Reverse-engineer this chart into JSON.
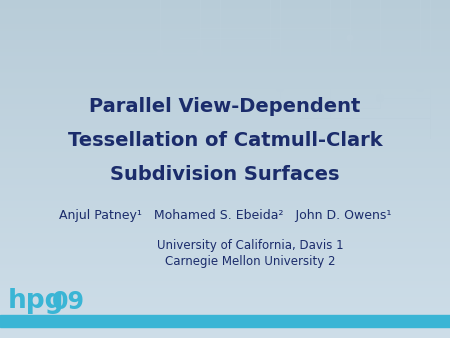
{
  "title_line1": "Parallel View-Dependent",
  "title_line2": "Tessellation of Catmull-Clark",
  "title_line3": "Subdivision Surfaces",
  "authors_part1": "Anjul Patney",
  "authors_sup1": "1",
  "authors_part2": "   Mohamed S. Ebeida",
  "authors_sup2": "2",
  "authors_part3": "   John D. Owens",
  "authors_sup3": "1",
  "affil1": "University of California, Davis ",
  "affil1_sup": "1",
  "affil2": "Carnegie Mellon University ",
  "affil2_sup": "2",
  "title_color": "#1b2c6b",
  "author_color": "#1b2c6b",
  "affil_color": "#1b2c6b",
  "bg_color_top": "#cddde8",
  "bg_color_bottom": "#d8e8f0",
  "stripe_color": "#3ab5d5",
  "logo_color": "#3ab5d5",
  "circuit_color": "#bdd0dc",
  "title_fontsize": 14,
  "author_fontsize": 9,
  "affil_fontsize": 8.5,
  "fig_width": 4.5,
  "fig_height": 3.38,
  "fig_dpi": 100
}
